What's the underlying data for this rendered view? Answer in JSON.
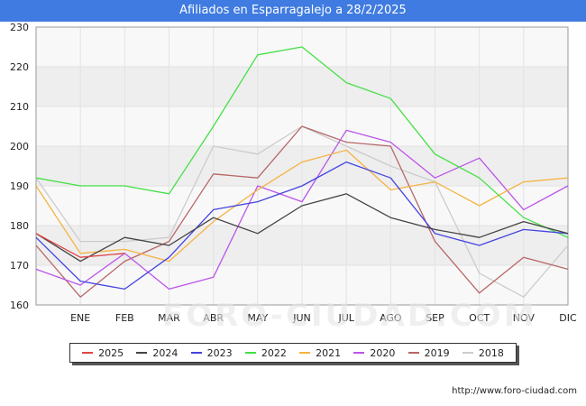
{
  "chart_data": {
    "type": "line",
    "title": "Afiliados en Esparragalejo a 28/2/2025",
    "categories": [
      "",
      "ENE",
      "FEB",
      "MAR",
      "ABR",
      "MAY",
      "JUN",
      "JUL",
      "AGO",
      "SEP",
      "OCT",
      "NOV",
      "DIC"
    ],
    "ylim": [
      160,
      230
    ],
    "yticks": [
      160,
      170,
      180,
      190,
      200,
      210,
      220,
      230
    ],
    "grid": true,
    "legend_position": "bottom",
    "series": [
      {
        "name": "2025",
        "color": "#e04444",
        "values": [
          178,
          172,
          173,
          null,
          null,
          null,
          null,
          null,
          null,
          null,
          null,
          null,
          null
        ]
      },
      {
        "name": "2024",
        "color": "#444444",
        "values": [
          178,
          171,
          177,
          175,
          182,
          178,
          185,
          188,
          182,
          179,
          177,
          181,
          178
        ]
      },
      {
        "name": "2023",
        "color": "#4444e0",
        "values": [
          177,
          166,
          164,
          172,
          184,
          186,
          190,
          196,
          192,
          178,
          175,
          179,
          178
        ]
      },
      {
        "name": "2022",
        "color": "#44e044",
        "values": [
          192,
          190,
          190,
          188,
          205,
          223,
          225,
          216,
          212,
          198,
          192,
          182,
          177
        ]
      },
      {
        "name": "2021",
        "color": "#f5b342",
        "values": [
          190,
          173,
          174,
          171,
          181,
          189,
          196,
          199,
          189,
          191,
          185,
          191,
          192
        ]
      },
      {
        "name": "2020",
        "color": "#bb55e8",
        "values": [
          169,
          165,
          173,
          164,
          167,
          190,
          186,
          204,
          201,
          192,
          197,
          184,
          190
        ]
      },
      {
        "name": "2019",
        "color": "#b86666",
        "values": [
          175,
          162,
          171,
          176,
          193,
          192,
          205,
          201,
          200,
          176,
          163,
          172,
          169
        ]
      },
      {
        "name": "2018",
        "color": "#cccccc",
        "values": [
          192,
          176,
          176,
          177,
          200,
          198,
          205,
          200,
          195,
          191,
          168,
          162,
          175
        ]
      }
    ]
  },
  "footer": {
    "source": "http://www.foro-ciudad.com",
    "watermark": "FORO-CIUDAD.COM"
  }
}
